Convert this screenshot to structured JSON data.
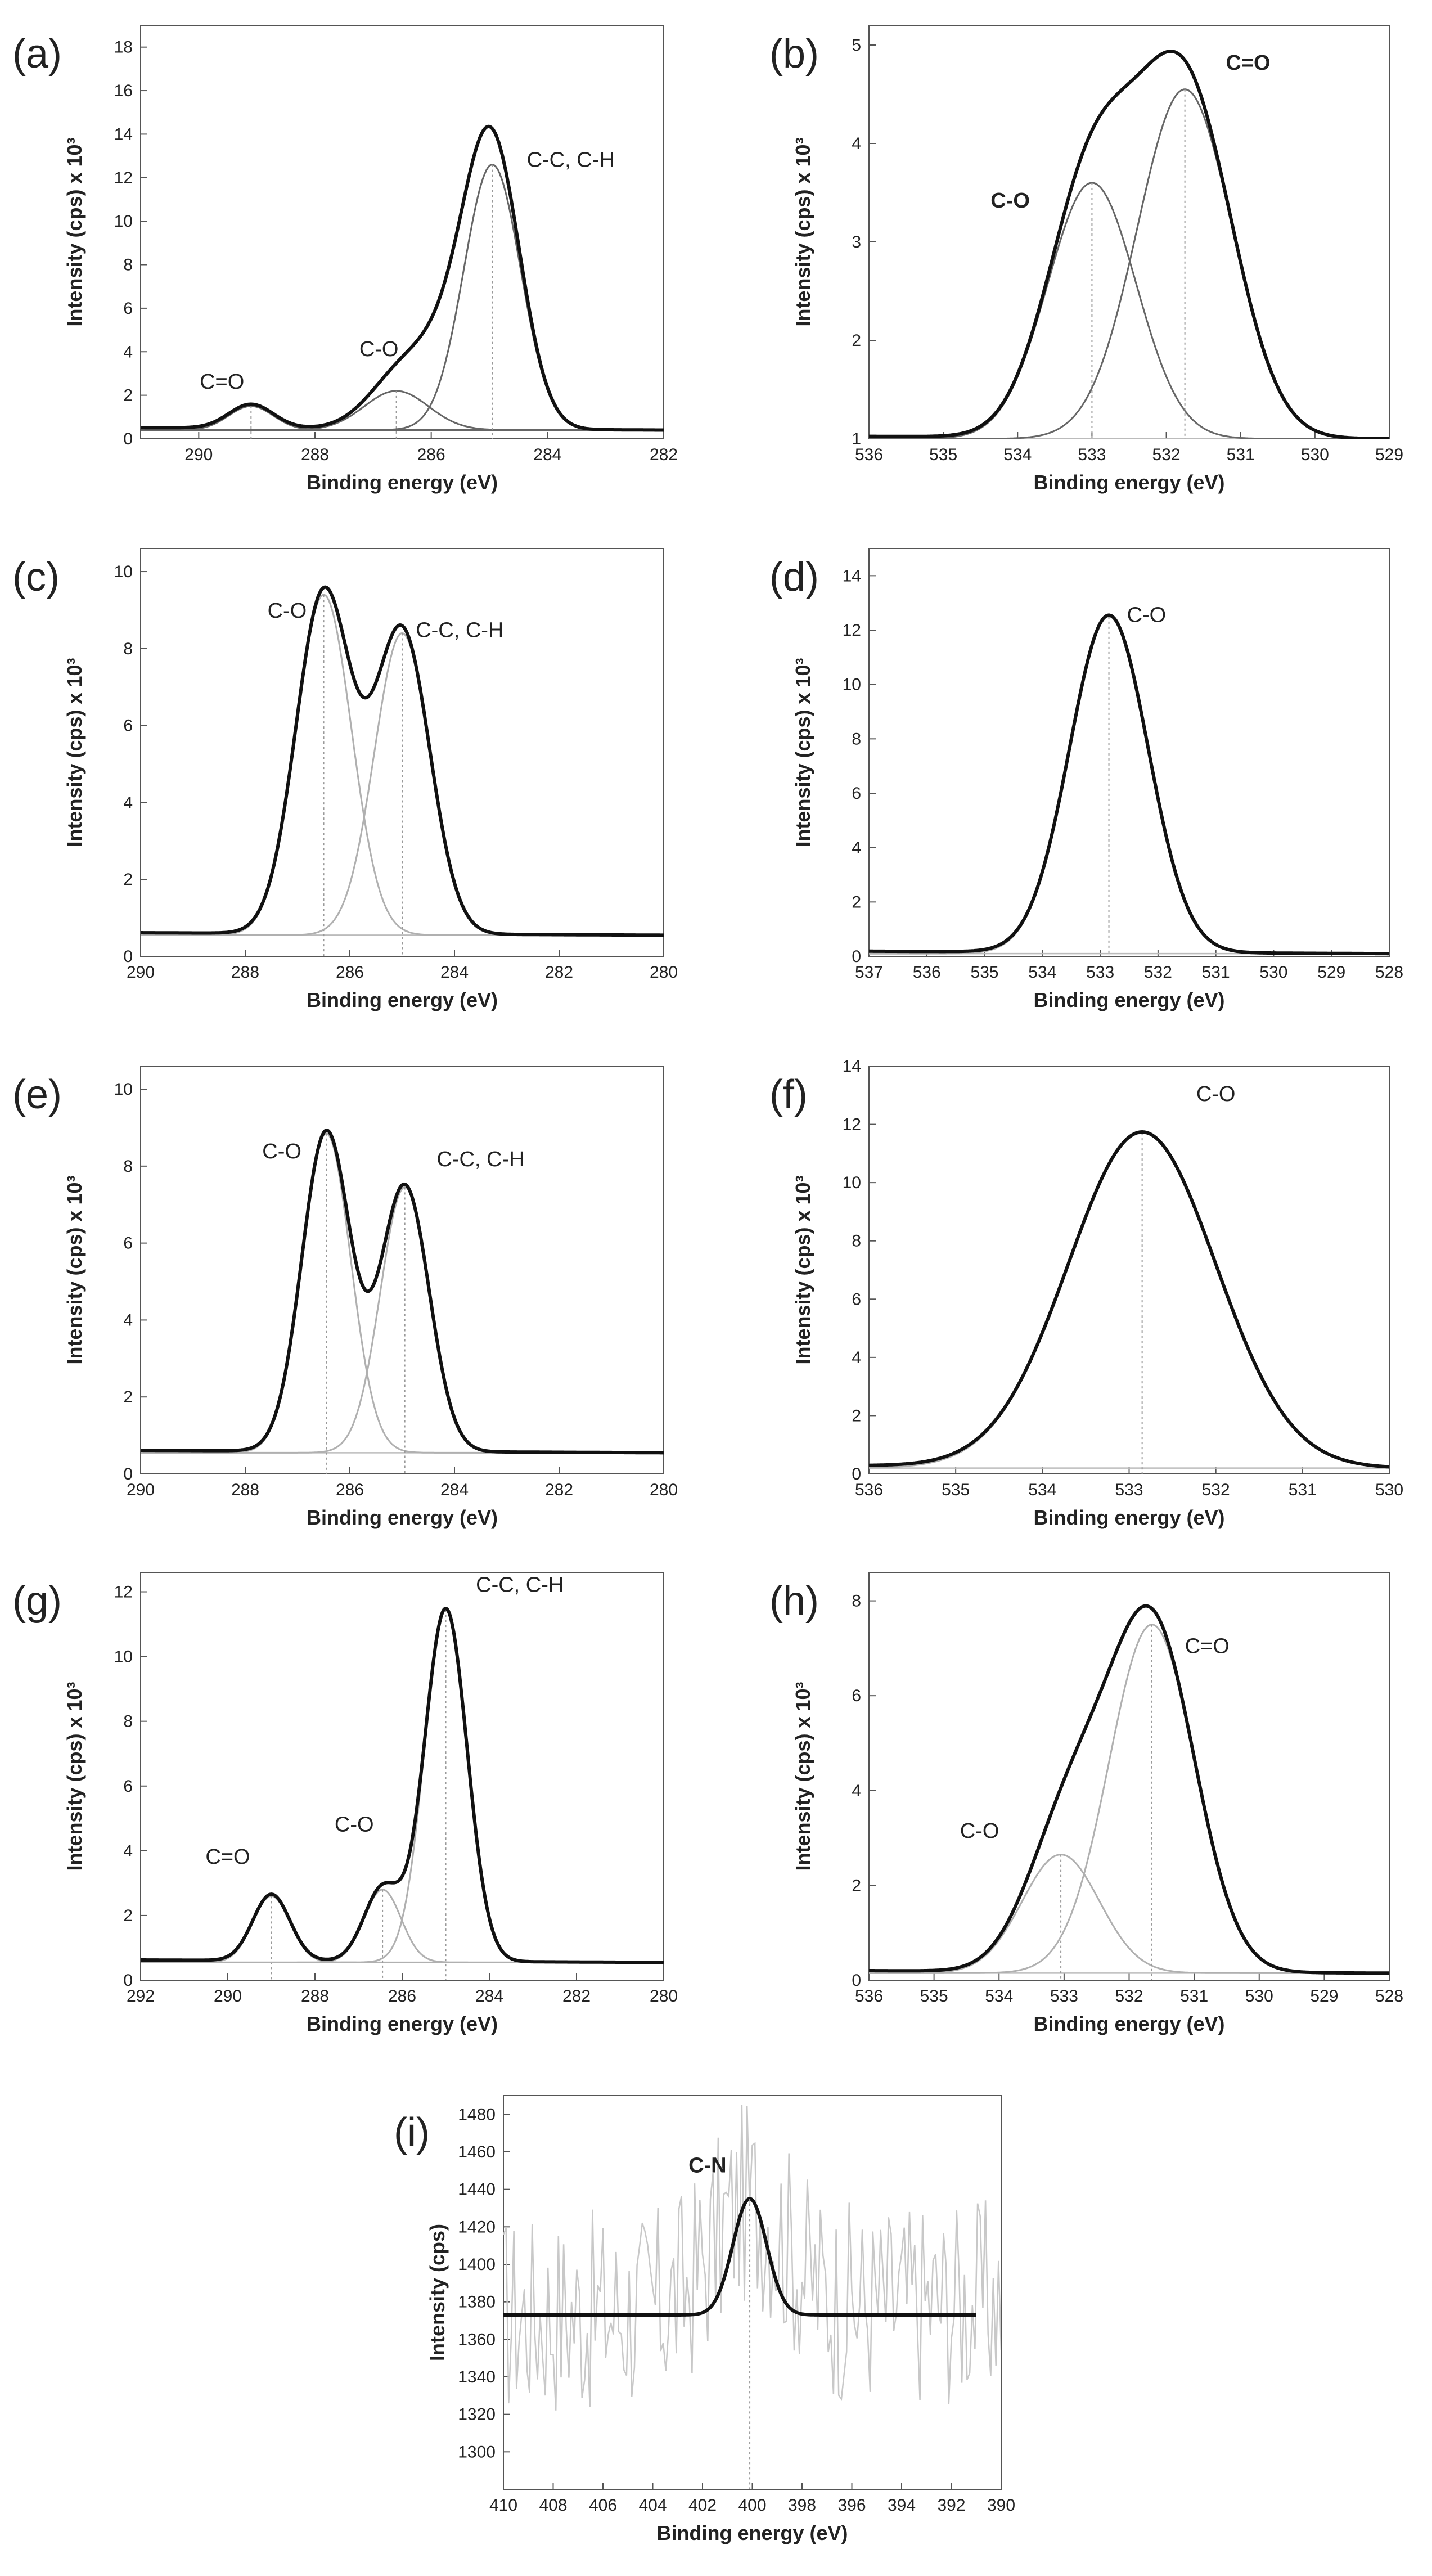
{
  "figure": {
    "description": "XPS high-resolution spectra with peak deconvolution"
  },
  "chart_data": [
    {
      "id": "a",
      "label": "(a)",
      "type": "line",
      "xlabel": "Binding energy (eV)",
      "ylabel": "Intensity (cps) x 10³",
      "xlim": [
        291,
        282
      ],
      "ylim": [
        0,
        19
      ],
      "xticks": [
        290,
        288,
        286,
        284,
        282
      ],
      "yticks": [
        0,
        2,
        4,
        6,
        8,
        10,
        12,
        14,
        16,
        18
      ],
      "baseline": 0.4,
      "components": [
        {
          "name": "C=O",
          "center": 289.1,
          "amplitude": 1.1,
          "fwhm": 0.9
        },
        {
          "name": "C-O",
          "center": 286.6,
          "amplitude": 1.8,
          "fwhm": 1.3
        },
        {
          "name": "C-C, C-H",
          "center": 284.95,
          "amplitude": 12.2,
          "fwhm": 1.15
        },
        {
          "name": "",
          "center": 285.7,
          "amplitude": 3.2,
          "fwhm": 1.5
        }
      ],
      "peak_labels": [
        {
          "text": "C=O",
          "x": 289.6,
          "y": 2.3
        },
        {
          "text": "C-O",
          "x": 286.9,
          "y": 3.8
        },
        {
          "text": "C-C, C-H",
          "x": 283.6,
          "y": 12.5
        }
      ],
      "bold_labels": false
    },
    {
      "id": "b",
      "label": "(b)",
      "type": "line",
      "xlabel": "Binding energy (eV)",
      "ylabel": "Intensity (cps) x 10³",
      "xlim": [
        536,
        529
      ],
      "ylim": [
        1,
        5.2
      ],
      "xticks": [
        536,
        535,
        534,
        533,
        532,
        531,
        530,
        529
      ],
      "yticks": [
        1,
        2,
        3,
        4,
        5
      ],
      "baseline": 1.0,
      "components": [
        {
          "name": "C-O",
          "center": 533.0,
          "amplitude": 2.6,
          "fwhm": 1.4
        },
        {
          "name": "C=O",
          "center": 531.75,
          "amplitude": 3.55,
          "fwhm": 1.5
        }
      ],
      "peak_labels": [
        {
          "text": "C-O",
          "x": 534.1,
          "y": 3.35
        },
        {
          "text": "C=O",
          "x": 530.9,
          "y": 4.75
        }
      ],
      "bold_labels": true
    },
    {
      "id": "c",
      "label": "(c)",
      "type": "line",
      "xlabel": "Binding energy (eV)",
      "ylabel": "Intensity (cps) x 10³",
      "xlim": [
        290,
        280
      ],
      "ylim": [
        0,
        10.6
      ],
      "xticks": [
        290,
        288,
        286,
        284,
        282,
        280
      ],
      "yticks": [
        0,
        2,
        4,
        6,
        8,
        10
      ],
      "baseline": 0.55,
      "components": [
        {
          "name": "C-O",
          "center": 286.5,
          "amplitude": 8.85,
          "fwhm": 1.25
        },
        {
          "name": "C-C, C-H",
          "center": 285.0,
          "amplitude": 7.85,
          "fwhm": 1.25
        }
      ],
      "peak_labels": [
        {
          "text": "C-O",
          "x": 287.2,
          "y": 8.8
        },
        {
          "text": "C-C, C-H",
          "x": 283.9,
          "y": 8.3
        }
      ],
      "bold_labels": false
    },
    {
      "id": "d",
      "label": "(d)",
      "type": "line",
      "xlabel": "Binding energy (eV)",
      "ylabel": "Intensity (cps) x 10³",
      "xlim": [
        537,
        528
      ],
      "ylim": [
        0,
        15
      ],
      "xticks": [
        537,
        536,
        535,
        534,
        533,
        532,
        531,
        530,
        529,
        528
      ],
      "yticks": [
        0,
        2,
        4,
        6,
        8,
        10,
        12,
        14
      ],
      "baseline": 0.1,
      "components": [
        {
          "name": "C-O",
          "center": 532.85,
          "amplitude": 12.4,
          "fwhm": 1.6
        }
      ],
      "peak_labels": [
        {
          "text": "C-O",
          "x": 532.2,
          "y": 12.3
        }
      ],
      "bold_labels": false
    },
    {
      "id": "e",
      "label": "(e)",
      "type": "line",
      "xlabel": "Binding energy (eV)",
      "ylabel": "Intensity (cps) x 10³",
      "xlim": [
        290,
        280
      ],
      "ylim": [
        0,
        10.6
      ],
      "xticks": [
        290,
        288,
        286,
        284,
        282,
        280
      ],
      "yticks": [
        0,
        2,
        4,
        6,
        8,
        10
      ],
      "baseline": 0.55,
      "components": [
        {
          "name": "C-O",
          "center": 286.45,
          "amplitude": 8.3,
          "fwhm": 1.1
        },
        {
          "name": "C-C, C-H",
          "center": 284.95,
          "amplitude": 6.9,
          "fwhm": 1.1
        }
      ],
      "peak_labels": [
        {
          "text": "C-O",
          "x": 287.3,
          "y": 8.2
        },
        {
          "text": "C-C, C-H",
          "x": 283.5,
          "y": 8.0
        }
      ],
      "bold_labels": false
    },
    {
      "id": "f",
      "label": "(f)",
      "type": "line",
      "xlabel": "Binding energy (eV)",
      "ylabel": "Intensity (cps) x 10³",
      "xlim": [
        536,
        530
      ],
      "ylim": [
        0,
        14
      ],
      "xticks": [
        536,
        535,
        534,
        533,
        532,
        531,
        530
      ],
      "yticks": [
        0,
        2,
        4,
        6,
        8,
        10,
        12,
        14
      ],
      "baseline": 0.2,
      "components": [
        {
          "name": "C-O",
          "center": 532.85,
          "amplitude": 11.5,
          "fwhm": 2.0
        }
      ],
      "peak_labels": [
        {
          "text": "C-O",
          "x": 532.0,
          "y": 12.8
        }
      ],
      "bold_labels": false
    },
    {
      "id": "g",
      "label": "(g)",
      "type": "line",
      "xlabel": "Binding energy (eV)",
      "ylabel": "Intensity (cps) x 10³",
      "xlim": [
        292,
        280
      ],
      "ylim": [
        0,
        12.6
      ],
      "xticks": [
        292,
        290,
        288,
        286,
        284,
        282,
        280
      ],
      "yticks": [
        0,
        2,
        4,
        6,
        8,
        10,
        12
      ],
      "baseline": 0.55,
      "components": [
        {
          "name": "C=O",
          "center": 289.0,
          "amplitude": 2.05,
          "fwhm": 1.0
        },
        {
          "name": "C-O",
          "center": 286.45,
          "amplitude": 2.25,
          "fwhm": 1.0
        },
        {
          "name": "C-C, C-H",
          "center": 285.0,
          "amplitude": 10.9,
          "fwhm": 1.15
        }
      ],
      "peak_labels": [
        {
          "text": "C=O",
          "x": 290.0,
          "y": 3.6
        },
        {
          "text": "C-O",
          "x": 287.1,
          "y": 4.6
        },
        {
          "text": "C-C, C-H",
          "x": 283.3,
          "y": 12.0
        }
      ],
      "bold_labels": false
    },
    {
      "id": "h",
      "label": "(h)",
      "type": "line",
      "xlabel": "Binding energy (eV)",
      "ylabel": "Intensity (cps) x 10³",
      "xlim": [
        536,
        528
      ],
      "ylim": [
        0,
        8.6
      ],
      "xticks": [
        536,
        535,
        534,
        533,
        532,
        531,
        530,
        529,
        528
      ],
      "yticks": [
        0,
        2,
        4,
        6,
        8
      ],
      "baseline": 0.15,
      "components": [
        {
          "name": "C-O",
          "center": 533.05,
          "amplitude": 2.5,
          "fwhm": 1.4
        },
        {
          "name": "C=O",
          "center": 531.65,
          "amplitude": 7.35,
          "fwhm": 1.55
        },
        {
          "name": "",
          "center": 532.6,
          "amplitude": 0.9,
          "fwhm": 1.2
        }
      ],
      "peak_labels": [
        {
          "text": "C-O",
          "x": 534.3,
          "y": 3.0
        },
        {
          "text": "C=O",
          "x": 530.8,
          "y": 6.9
        }
      ],
      "bold_labels": false
    },
    {
      "id": "i",
      "label": "(i)",
      "type": "line",
      "xlabel": "Binding energy (eV)",
      "ylabel": "Intensity (cps)",
      "xlim": [
        410,
        390
      ],
      "ylim": [
        1280,
        1490
      ],
      "xticks": [
        410,
        408,
        406,
        404,
        402,
        400,
        398,
        396,
        394,
        392,
        390
      ],
      "yticks": [
        1300,
        1320,
        1340,
        1360,
        1380,
        1400,
        1420,
        1440,
        1460,
        1480
      ],
      "baseline": 1373,
      "fit_range": [
        410,
        391
      ],
      "components": [
        {
          "name": "C-N",
          "center": 400.1,
          "amplitude": 62,
          "fwhm": 1.6
        }
      ],
      "peak_labels": [
        {
          "text": "C-N",
          "x": 401.8,
          "y": 1449
        }
      ],
      "bold_labels": true,
      "noisy_raw": true
    }
  ]
}
